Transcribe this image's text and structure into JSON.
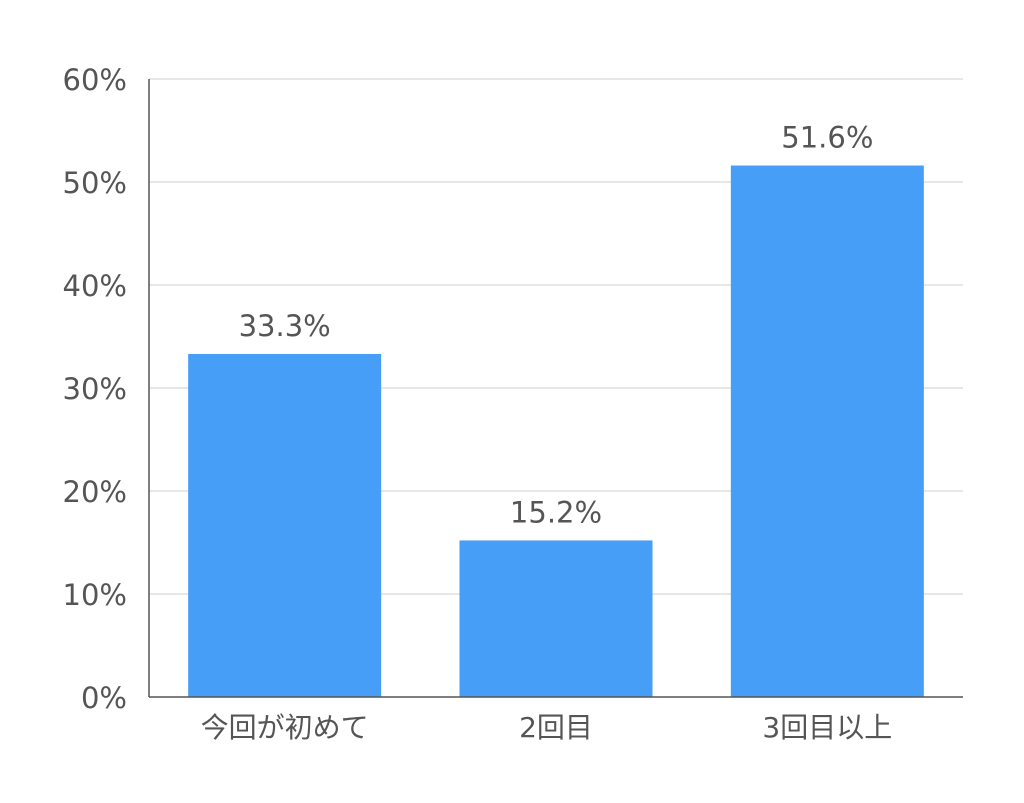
{
  "chart_data": {
    "type": "bar",
    "categories": [
      "今回が初めて",
      "2回目",
      "3回目以上"
    ],
    "values": [
      33.3,
      15.2,
      51.6
    ],
    "data_labels": [
      "33.3%",
      "15.2%",
      "51.6%"
    ],
    "title": "",
    "xlabel": "",
    "ylabel": "",
    "ylim": [
      0,
      60
    ],
    "yticks": [
      0,
      10,
      20,
      30,
      40,
      50,
      60
    ],
    "ytick_labels": [
      "0%",
      "10%",
      "20%",
      "30%",
      "40%",
      "50%",
      "60%"
    ],
    "grid": true,
    "legend": "none",
    "bar_color": "#469ef7"
  }
}
